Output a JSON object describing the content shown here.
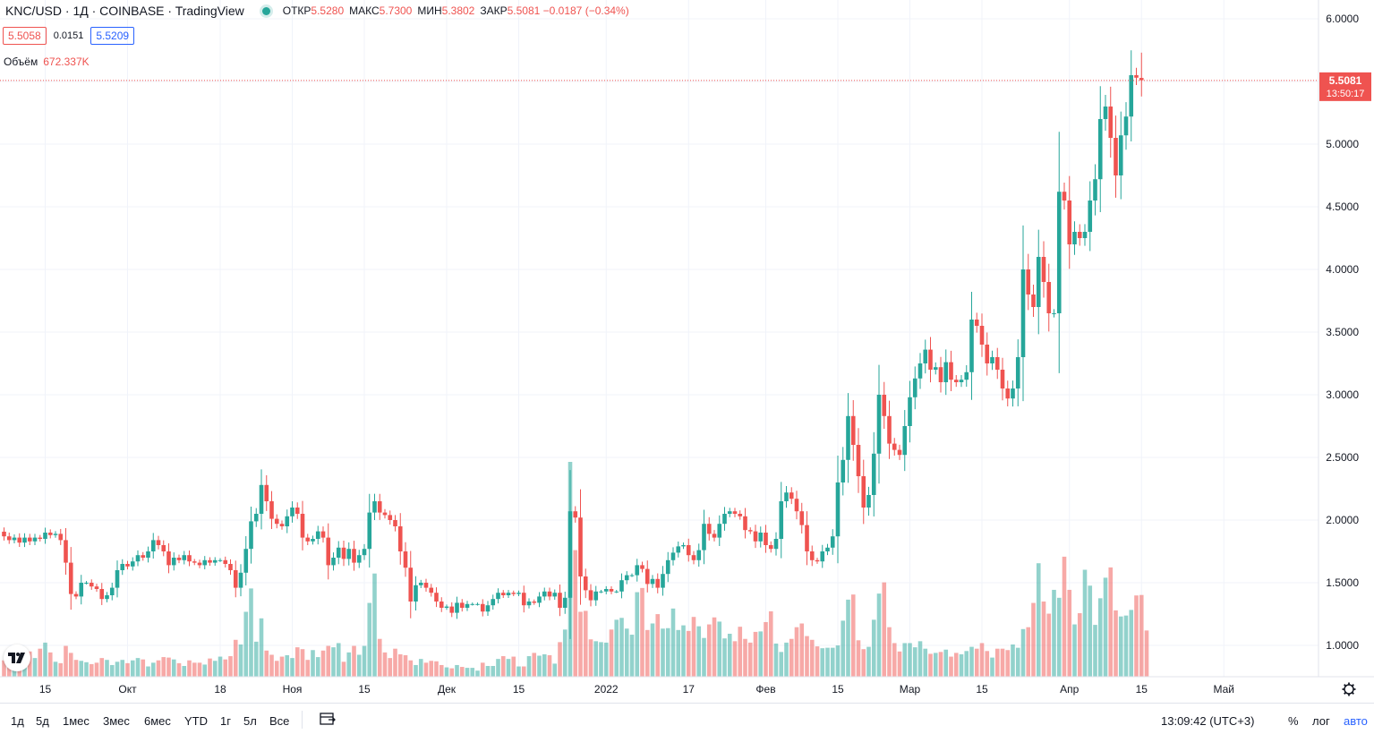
{
  "header": {
    "title": "KNC/USD · 1Д · COINBASE · TradingView",
    "ohlc": [
      {
        "k": "ОТКР",
        "v": "5.5280"
      },
      {
        "k": "МАКС",
        "v": "5.7300"
      },
      {
        "k": "МИН",
        "v": "5.3802"
      },
      {
        "k": "ЗАКР",
        "v": "5.5081 −0.0187 (−0.34%)"
      }
    ],
    "bid": "5.5058",
    "spread": "0.0151",
    "ask": "5.5209",
    "volume_label": "Объём",
    "volume_value": "672.337K"
  },
  "price_axis": {
    "labels": [
      "6.0000",
      "5.5000",
      "5.0000",
      "4.5000",
      "4.0000",
      "3.5000",
      "3.0000",
      "2.5000",
      "2.0000",
      "1.5000",
      "1.0000"
    ],
    "last_price": "5.5081",
    "countdown": "13:50:17"
  },
  "time_axis": {
    "labels": [
      "15",
      "Окт",
      "18",
      "Ноя",
      "15",
      "Дек",
      "15",
      "2022",
      "17",
      "Фев",
      "15",
      "Мар",
      "15",
      "Апр",
      "15",
      "Май"
    ]
  },
  "bottom_bar": {
    "ranges": [
      "1д",
      "5д",
      "1мес",
      "3мес",
      "6мес",
      "YTD",
      "1г",
      "5л",
      "Все"
    ],
    "clock": "13:09:42 (UTC+3)",
    "percent": "%",
    "log": "лог",
    "auto": "авто"
  },
  "colors": {
    "up": "#26a69a",
    "down": "#ef5350",
    "grid": "#f0f3fa",
    "last": "#ef5350"
  },
  "chart_data": {
    "type": "candlestick",
    "title": "KNC/USD · 1Д · COINBASE",
    "ylim": [
      0.75,
      6.15
    ],
    "price_levels": [
      6.0,
      5.5,
      5.0,
      4.5,
      4.0,
      3.5,
      3.0,
      2.5,
      2.0,
      1.5,
      1.0
    ],
    "time_ticks": [
      {
        "label": "15",
        "index": 8
      },
      {
        "label": "Окт",
        "index": 24
      },
      {
        "label": "18",
        "index": 42
      },
      {
        "label": "Ноя",
        "index": 56
      },
      {
        "label": "15",
        "index": 70
      },
      {
        "label": "Дек",
        "index": 86
      },
      {
        "label": "15",
        "index": 100
      },
      {
        "label": "2022",
        "index": 117
      },
      {
        "label": "17",
        "index": 133
      },
      {
        "label": "Фев",
        "index": 148
      },
      {
        "label": "15",
        "index": 162
      },
      {
        "label": "Мар",
        "index": 176
      },
      {
        "label": "15",
        "index": 190
      },
      {
        "label": "Апр",
        "index": 207
      },
      {
        "label": "15",
        "index": 221
      },
      {
        "label": "Май",
        "index": 237
      }
    ],
    "closes": [
      1.87,
      1.84,
      1.86,
      1.82,
      1.86,
      1.83,
      1.86,
      1.85,
      1.9,
      1.88,
      1.89,
      1.84,
      1.66,
      1.41,
      1.39,
      1.5,
      1.5,
      1.47,
      1.45,
      1.37,
      1.4,
      1.46,
      1.6,
      1.65,
      1.63,
      1.67,
      1.72,
      1.7,
      1.75,
      1.84,
      1.8,
      1.75,
      1.64,
      1.7,
      1.68,
      1.72,
      1.67,
      1.66,
      1.64,
      1.68,
      1.66,
      1.68,
      1.68,
      1.65,
      1.6,
      1.46,
      1.58,
      1.77,
      1.99,
      2.05,
      2.28,
      2.15,
      2.01,
      1.97,
      1.95,
      2.03,
      2.1,
      2.05,
      1.86,
      1.83,
      1.85,
      1.91,
      1.86,
      1.64,
      1.7,
      1.78,
      1.69,
      1.77,
      1.66,
      1.72,
      1.77,
      2.06,
      2.15,
      2.06,
      2.04,
      2.0,
      1.95,
      1.75,
      1.62,
      1.35,
      1.48,
      1.5,
      1.46,
      1.42,
      1.35,
      1.3,
      1.31,
      1.26,
      1.34,
      1.3,
      1.33,
      1.33,
      1.33,
      1.27,
      1.32,
      1.37,
      1.42,
      1.4,
      1.42,
      1.41,
      1.42,
      1.32,
      1.35,
      1.34,
      1.39,
      1.43,
      1.39,
      1.42,
      1.3,
      1.38,
      2.07,
      2.02,
      1.55,
      1.44,
      1.36,
      1.43,
      1.43,
      1.45,
      1.43,
      1.43,
      1.52,
      1.56,
      1.56,
      1.64,
      1.61,
      1.49,
      1.53,
      1.46,
      1.57,
      1.68,
      1.74,
      1.79,
      1.8,
      1.72,
      1.68,
      1.76,
      1.97,
      1.89,
      1.86,
      1.97,
      2.05,
      2.07,
      2.05,
      2.03,
      1.92,
      1.91,
      1.83,
      1.9,
      1.8,
      1.77,
      1.85,
      2.15,
      2.22,
      2.17,
      2.07,
      1.96,
      1.75,
      1.68,
      1.67,
      1.75,
      1.78,
      1.87,
      2.3,
      2.48,
      2.83,
      2.6,
      2.35,
      2.1,
      2.2,
      2.53,
      3.0,
      2.83,
      2.61,
      2.56,
      2.52,
      2.75,
      2.98,
      3.13,
      3.25,
      3.36,
      3.2,
      3.22,
      3.1,
      3.26,
      3.12,
      3.1,
      3.12,
      3.18,
      3.6,
      3.55,
      3.4,
      3.25,
      3.3,
      3.2,
      3.05,
      2.97,
      3.05,
      3.3,
      4.0,
      3.8,
      3.7,
      4.1,
      3.9,
      3.65,
      3.65,
      4.62,
      4.55,
      4.2,
      4.3,
      4.25,
      4.3,
      4.55,
      4.72,
      5.2,
      5.3,
      5.05,
      4.75,
      5.07,
      5.22,
      5.55,
      5.53,
      5.51
    ],
    "volume_unit": "K",
    "last_volume": 672.337,
    "volume_rel": [
      0.35,
      0.25,
      0.18,
      0.4,
      0.34,
      0.54,
      0.4,
      0.6,
      0.73,
      0.52,
      0.32,
      0.29,
      0.66,
      0.51,
      0.36,
      0.34,
      0.31,
      0.27,
      0.3,
      0.4,
      0.36,
      0.25,
      0.32,
      0.36,
      0.29,
      0.35,
      0.4,
      0.37,
      0.22,
      0.3,
      0.35,
      0.42,
      0.41,
      0.37,
      0.29,
      0.23,
      0.35,
      0.3,
      0.3,
      0.26,
      0.39,
      0.34,
      0.43,
      0.37,
      0.44,
      0.79,
      0.69,
      1.39,
      1.89,
      0.75,
      1.25,
      0.56,
      0.47,
      0.34,
      0.43,
      0.46,
      0.4,
      0.63,
      0.59,
      0.36,
      0.57,
      0.42,
      0.56,
      0.66,
      0.63,
      0.72,
      0.32,
      0.52,
      0.66,
      0.47,
      0.66,
      1.58,
      2.21,
      0.81,
      0.52,
      0.4,
      0.6,
      0.48,
      0.46,
      0.35,
      0.25,
      0.38,
      0.3,
      0.34,
      0.33,
      0.25,
      0.2,
      0.18,
      0.25,
      0.21,
      0.19,
      0.19,
      0.13,
      0.3,
      0.23,
      0.23,
      0.38,
      0.44,
      0.38,
      0.43,
      0.22,
      0.22,
      0.44,
      0.51,
      0.45,
      0.48,
      0.46,
      0.28,
      0.74,
      1.01,
      4.6,
      2.71,
      1.39,
      1.41,
      0.8,
      0.76,
      0.74,
      0.73,
      1.01,
      1.22,
      1.26,
      1.03,
      0.9,
      1.81,
      1.9,
      1.0,
      1.14,
      1.34,
      1.03,
      1.04,
      1.46,
      1.0,
      1.1,
      0.98,
      1.28,
      1.08,
      0.83,
      1.12,
      1.27,
      1.18,
      0.82,
      0.92,
      0.76,
      1.07,
      0.81,
      0.73,
      0.96,
      0.97,
      1.17,
      1.4,
      0.71,
      0.53,
      0.73,
      0.81,
      1.06,
      1.14,
      0.87,
      0.79,
      0.65,
      0.61,
      0.62,
      0.62,
      0.67,
      1.2,
      1.65,
      1.76,
      0.78,
      0.59,
      0.64,
      1.22,
      1.78,
      2.02,
      1.06,
      0.72,
      0.54,
      0.72,
      0.72,
      0.63,
      0.76,
      0.6,
      0.49,
      0.51,
      0.53,
      0.58,
      0.43,
      0.51,
      0.48,
      0.55,
      0.64,
      0.6,
      0.72,
      0.55,
      0.41,
      0.6,
      0.6,
      0.57,
      0.69,
      0.62,
      1.02,
      1.06,
      1.58,
      2.43,
      1.61,
      1.35,
      1.86,
      1.69,
      2.57,
      1.86,
      1.12,
      1.36,
      2.29,
      1.95,
      1.11,
      1.68,
      2.12,
      2.34,
      1.42,
      1.29,
      1.31,
      1.43,
      1.74,
      1.75,
      0.99
    ],
    "last": {
      "open": 5.528,
      "high": 5.73,
      "low": 5.3802,
      "close": 5.5081,
      "change": -0.0187,
      "change_pct": -0.34
    }
  }
}
